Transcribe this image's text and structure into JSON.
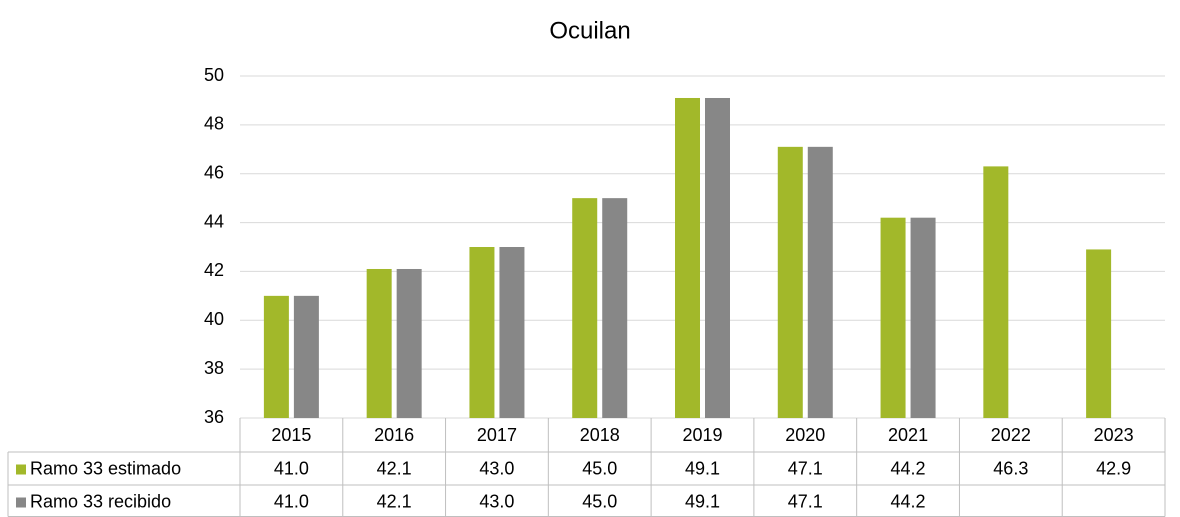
{
  "chart_data": {
    "type": "bar",
    "title": "Ocuilan",
    "categories": [
      "2015",
      "2016",
      "2017",
      "2018",
      "2019",
      "2020",
      "2021",
      "2022",
      "2023"
    ],
    "series": [
      {
        "name": "Ramo 33 estimado",
        "color": "#a2b82a",
        "values": [
          41.0,
          42.1,
          43.0,
          45.0,
          49.1,
          47.1,
          44.2,
          46.3,
          42.9
        ],
        "value_labels": [
          "41.0",
          "42.1",
          "43.0",
          "45.0",
          "49.1",
          "47.1",
          "44.2",
          "46.3",
          "42.9"
        ]
      },
      {
        "name": "Ramo 33 recibido",
        "color": "#878787",
        "values": [
          41.0,
          42.1,
          43.0,
          45.0,
          49.1,
          47.1,
          44.2,
          null,
          null
        ],
        "value_labels": [
          "41.0",
          "42.1",
          "43.0",
          "45.0",
          "49.1",
          "47.1",
          "44.2",
          null,
          null
        ]
      }
    ],
    "ylim": [
      36,
      50
    ],
    "yticks": [
      36,
      38,
      40,
      42,
      44,
      46,
      48,
      50
    ],
    "grid": true
  }
}
